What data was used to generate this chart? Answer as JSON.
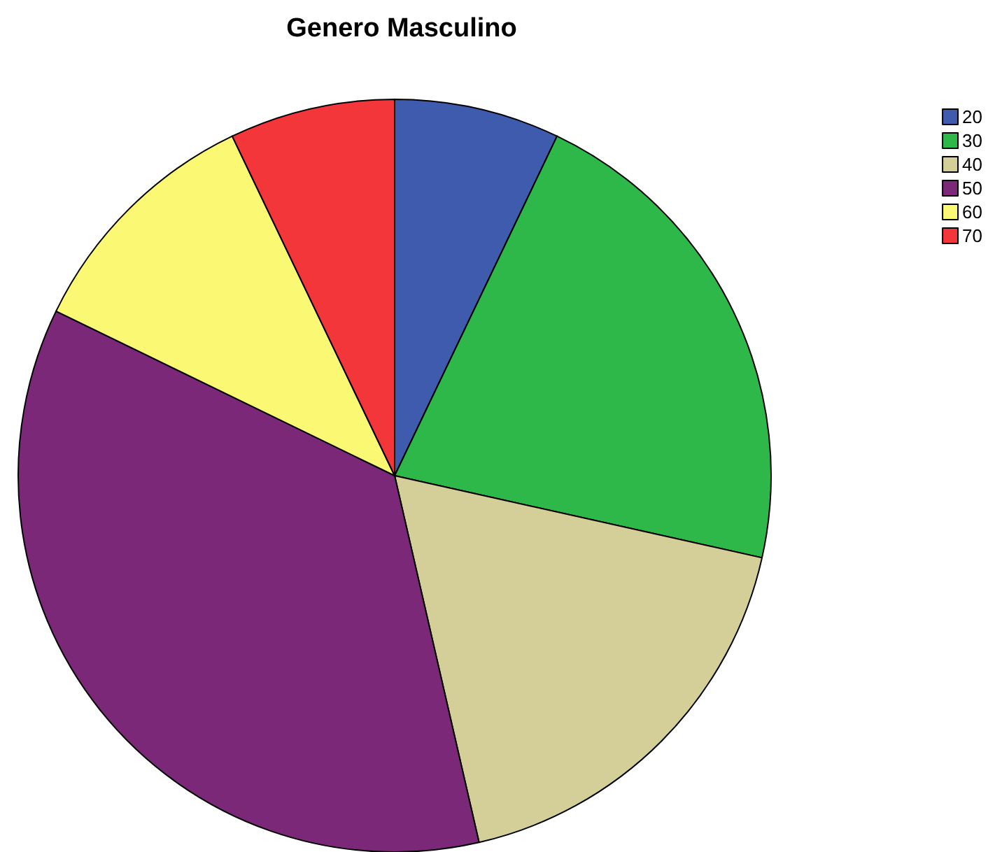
{
  "chart_data": {
    "type": "pie",
    "title": "Genero Masculino",
    "categories": [
      "20",
      "30",
      "40",
      "50",
      "60",
      "70"
    ],
    "values": [
      7.1,
      21.4,
      17.9,
      35.8,
      10.7,
      7.1
    ],
    "colors": [
      "#3f5bae",
      "#2fb84a",
      "#d4cf98",
      "#7b2878",
      "#fbf873",
      "#f2363a"
    ],
    "legend": "top right"
  }
}
